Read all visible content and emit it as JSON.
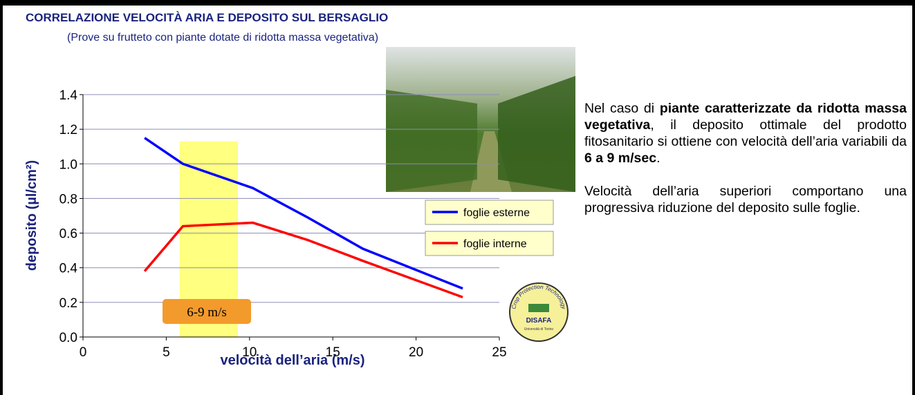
{
  "chart_data": {
    "type": "line",
    "title": "CORRELAZIONE VELOCITÀ ARIA E DEPOSITO SUL BERSAGLIO",
    "subtitle": "(Prove su frutteto con piante dotate di ridotta massa vegetativa)",
    "x_label": "velocità dell’aria (m/s)",
    "y_label": "deposito (µl/cm²)",
    "x": [
      3.7,
      6,
      10.2,
      13.5,
      16.8,
      22.8
    ],
    "series": [
      {
        "name": "foglie esterne",
        "color": "#0000ff",
        "values": [
          1.15,
          1.0,
          0.86,
          0.69,
          0.51,
          0.28
        ]
      },
      {
        "name": "foglie interne",
        "color": "#ff0000",
        "values": [
          0.38,
          0.64,
          0.66,
          0.56,
          0.44,
          0.23
        ]
      }
    ],
    "xlim": [
      0,
      25
    ],
    "ylim": [
      0,
      1.4
    ],
    "xticks": [
      0,
      5,
      10,
      15,
      20,
      25
    ],
    "yticks": [
      {
        "value": 0,
        "label": "0.0"
      },
      0.2,
      0.4,
      0.6,
      0.8,
      {
        "value": 1,
        "label": "1.0"
      },
      1.2,
      1.4
    ],
    "grid": true,
    "highlight": {
      "x": [
        5.8,
        9.3
      ],
      "top": 1.13,
      "label": "6-9 m/s",
      "color": "#ffff80",
      "label_color": "#f39a2c"
    }
  },
  "notes": {
    "paragraphs": [
      [
        {
          "text": "Nel caso di ",
          "bold": false
        },
        {
          "text": "piante caratterizzate da ridotta massa vegetativa",
          "bold": true
        },
        {
          "text": ", il deposito ottimale del prodotto fitosanitario si ottiene con velocità dell’aria variabili da ",
          "bold": false
        },
        {
          "text": "6 a 9 m/sec",
          "bold": true
        },
        {
          "text": ".",
          "bold": false
        }
      ],
      [
        {
          "text": "Velocità dell’aria superiori comportano una progressiva riduzione del deposito sulle foglie.",
          "bold": false
        }
      ]
    ]
  },
  "logo": {
    "ring": "Crop Protection Technology",
    "name": "DISAFA",
    "sub": "Università di Torino"
  }
}
